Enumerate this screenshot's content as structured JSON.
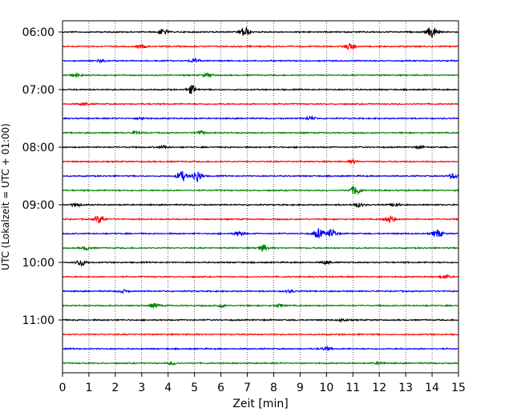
{
  "chart_data": {
    "type": "line",
    "title": "",
    "xlabel": "Zeit  [min]",
    "ylabel": "UTC (Lokalzeit = UTC + 01:00)",
    "xlim": [
      0,
      15
    ],
    "x_ticks": [
      "0",
      "1",
      "2",
      "3",
      "4",
      "5",
      "6",
      "7",
      "8",
      "9",
      "10",
      "11",
      "12",
      "13",
      "14",
      "15"
    ],
    "y_ticks": [
      "06:00",
      "07:00",
      "08:00",
      "09:00",
      "10:00",
      "11:00"
    ],
    "grid": "vertical dotted",
    "trace_interval_min": 15,
    "trace_colors": [
      "#000000",
      "#ff0000",
      "#0000ff",
      "#008000"
    ],
    "traces": [
      {
        "start": "06:00",
        "color": "#000000",
        "events": [
          [
            3.8,
            0.35
          ],
          [
            6.9,
            0.6
          ],
          [
            14.0,
            0.75
          ]
        ]
      },
      {
        "start": "06:15",
        "color": "#ff0000",
        "events": [
          [
            3.0,
            0.2
          ],
          [
            10.9,
            0.4
          ]
        ]
      },
      {
        "start": "06:30",
        "color": "#0000ff",
        "events": [
          [
            1.5,
            0.2
          ],
          [
            5.0,
            0.25
          ]
        ]
      },
      {
        "start": "06:45",
        "color": "#008000",
        "events": [
          [
            0.5,
            0.2
          ],
          [
            5.5,
            0.2
          ]
        ]
      },
      {
        "start": "07:00",
        "color": "#000000",
        "events": [
          [
            4.9,
            0.5
          ]
        ]
      },
      {
        "start": "07:15",
        "color": "#ff0000",
        "events": [
          [
            0.8,
            0.15
          ]
        ]
      },
      {
        "start": "07:30",
        "color": "#0000ff",
        "events": [
          [
            3.0,
            0.15
          ],
          [
            9.4,
            0.2
          ]
        ]
      },
      {
        "start": "07:45",
        "color": "#008000",
        "events": [
          [
            2.8,
            0.2
          ],
          [
            5.2,
            0.25
          ]
        ]
      },
      {
        "start": "08:00",
        "color": "#000000",
        "events": [
          [
            3.8,
            0.2
          ],
          [
            13.5,
            0.15
          ]
        ]
      },
      {
        "start": "08:15",
        "color": "#ff0000",
        "events": [
          [
            11.0,
            0.2
          ]
        ]
      },
      {
        "start": "08:30",
        "color": "#0000ff",
        "events": [
          [
            4.5,
            0.6
          ],
          [
            5.1,
            0.7
          ],
          [
            14.8,
            0.3
          ]
        ]
      },
      {
        "start": "08:45",
        "color": "#008000",
        "events": [
          [
            11.1,
            0.6
          ]
        ]
      },
      {
        "start": "09:00",
        "color": "#000000",
        "events": [
          [
            0.5,
            0.2
          ],
          [
            11.2,
            0.25
          ],
          [
            12.6,
            0.2
          ]
        ]
      },
      {
        "start": "09:15",
        "color": "#ff0000",
        "events": [
          [
            1.4,
            0.45
          ],
          [
            12.4,
            0.4
          ]
        ]
      },
      {
        "start": "09:30",
        "color": "#0000ff",
        "events": [
          [
            6.7,
            0.3
          ],
          [
            9.7,
            0.55
          ],
          [
            10.2,
            0.5
          ],
          [
            14.2,
            0.5
          ]
        ]
      },
      {
        "start": "09:45",
        "color": "#008000",
        "events": [
          [
            0.9,
            0.2
          ],
          [
            7.6,
            0.4
          ]
        ]
      },
      {
        "start": "10:00",
        "color": "#000000",
        "events": [
          [
            0.7,
            0.4
          ],
          [
            10.0,
            0.2
          ]
        ]
      },
      {
        "start": "10:15",
        "color": "#ff0000",
        "events": [
          [
            14.5,
            0.2
          ]
        ]
      },
      {
        "start": "10:30",
        "color": "#0000ff",
        "events": [
          [
            2.3,
            0.15
          ],
          [
            8.6,
            0.15
          ]
        ]
      },
      {
        "start": "10:45",
        "color": "#008000",
        "events": [
          [
            3.5,
            0.25
          ],
          [
            6.0,
            0.2
          ],
          [
            8.2,
            0.2
          ]
        ]
      },
      {
        "start": "11:00",
        "color": "#000000",
        "events": [
          [
            10.6,
            0.15
          ]
        ]
      },
      {
        "start": "11:15",
        "color": "#ff0000",
        "events": []
      },
      {
        "start": "11:30",
        "color": "#0000ff",
        "events": [
          [
            10.0,
            0.2
          ]
        ]
      },
      {
        "start": "11:45",
        "color": "#008000",
        "events": [
          [
            4.2,
            0.15
          ],
          [
            12.0,
            0.15
          ]
        ]
      }
    ]
  }
}
